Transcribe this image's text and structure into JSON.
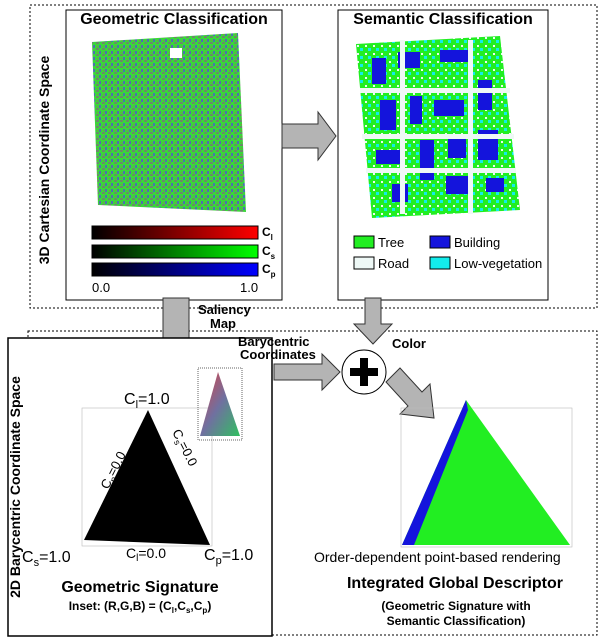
{
  "top_section": {
    "label": "3D Cartesian Coordinate Space"
  },
  "geometric_panel": {
    "title": "Geometric Classification",
    "colorbar_labels": [
      {
        "main": "C",
        "sub": "l"
      },
      {
        "main": "C",
        "sub": "s"
      },
      {
        "main": "C",
        "sub": "p"
      }
    ],
    "scale_min": "0.0",
    "scale_max": "1.0"
  },
  "semantic_panel": {
    "title": "Semantic Classification",
    "legend": [
      {
        "label": "Tree",
        "color": "#22ee22"
      },
      {
        "label": "Building",
        "color": "#1414dc"
      },
      {
        "label": "Road",
        "color": "#eef8f6"
      },
      {
        "label": "Low-vegetation",
        "color": "#12ecec"
      }
    ]
  },
  "saliency_label": [
    "Saliency",
    "Map"
  ],
  "bottom_section": {
    "label": "2D Barycentric Coordinate Space"
  },
  "signature_panel": {
    "vertex_labels": [
      {
        "main": "C",
        "sub": "l",
        "value": "=1.0"
      },
      {
        "main": "C",
        "sub": "p",
        "value": "=0.0"
      },
      {
        "main": "C",
        "sub": "s",
        "value": "=0.0"
      },
      {
        "main": "C",
        "sub": "s",
        "value": "=1.0"
      },
      {
        "main": "C",
        "sub": "l",
        "value": "=0.0"
      },
      {
        "main": "C",
        "sub": "p",
        "value": "=1.0"
      }
    ],
    "title": "Geometric Signature",
    "inset_caption": {
      "prefix": "Inset: (R,G,B) = (",
      "terms": [
        {
          "main": "C",
          "sub": "l"
        },
        {
          "main": "C",
          "sub": "s"
        },
        {
          "main": "C",
          "sub": "p"
        }
      ],
      "separator": ",",
      "suffix": ")"
    }
  },
  "barycentric_label": [
    "Barycentric",
    "Coordinates"
  ],
  "color_label": "Color",
  "descriptor_panel": {
    "rendering_note": "Order-dependent point-based rendering",
    "title": "Integrated Global Descriptor",
    "subtitle": [
      "(Geometric Signature with",
      "Semantic Classification)"
    ]
  }
}
